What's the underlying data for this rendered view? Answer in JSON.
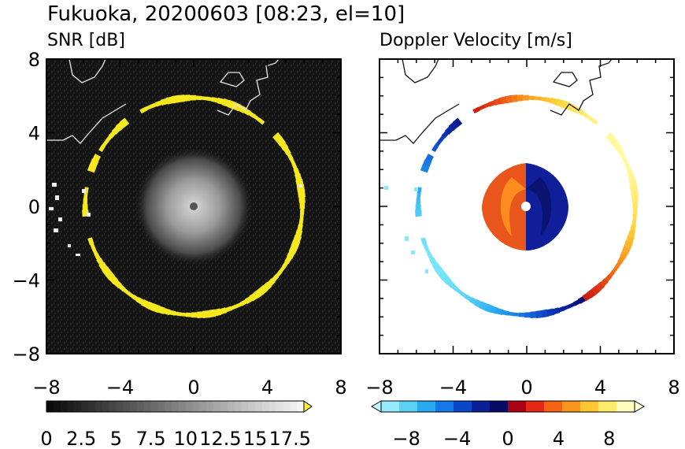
{
  "figure": {
    "title": "Fukuoka, 20200603 [08:23, el=10]"
  },
  "chart_data": [
    {
      "type": "heatmap",
      "title": "SNR [dB]",
      "x_ticks": [
        -8,
        -4,
        0,
        4,
        8
      ],
      "y_ticks": [
        8,
        4,
        0,
        -4,
        -8
      ],
      "xlim": [
        -8,
        8
      ],
      "ylim": [
        -8,
        8
      ],
      "ring_radius": 5.9,
      "colorbar": {
        "colormap": "grayscale",
        "range": [
          0,
          18.5
        ],
        "ticks": [
          "0",
          "2.5",
          "5",
          "7.5",
          "10",
          "12.5",
          "15",
          "17.5"
        ],
        "extend": "max",
        "over_color": "#ffee33"
      }
    },
    {
      "type": "heatmap",
      "title": "Doppler Velocity [m/s]",
      "x_ticks": [
        -8,
        -4,
        0,
        4,
        8
      ],
      "y_ticks": [
        8,
        4,
        0,
        -4,
        -8
      ],
      "xlim": [
        -8,
        8
      ],
      "ylim": [
        -8,
        8
      ],
      "ring_radius": 5.9,
      "colorbar": {
        "colormap": "diverging-blue-red-yellow",
        "range": [
          -10,
          10
        ],
        "ticks": [
          "−8",
          "−4",
          "0",
          "4",
          "8"
        ],
        "extend": "both"
      }
    }
  ]
}
